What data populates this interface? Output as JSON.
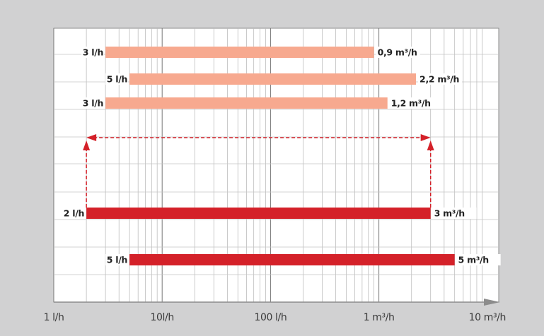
{
  "chart_data": {
    "type": "bar",
    "orientation": "horizontal-range",
    "x_scale": "log",
    "x_unit": "l/h",
    "xlim": [
      1,
      10000
    ],
    "x_ticks": [
      {
        "value": 1,
        "label": "1 l/h"
      },
      {
        "value": 10,
        "label": "10l/h"
      },
      {
        "value": 100,
        "label": "100 l/h"
      },
      {
        "value": 1000,
        "label": "1 m³/h"
      },
      {
        "value": 10000,
        "label": "10 m³/h"
      }
    ],
    "grid": true,
    "series": [
      {
        "name": "range-1",
        "start": 3,
        "end": 900,
        "start_label": "3 l/h",
        "end_label": "0,9 m³/h",
        "color": "#f7a98f"
      },
      {
        "name": "range-2",
        "start": 5,
        "end": 2200,
        "start_label": "5 l/h",
        "end_label": "2,2 m³/h",
        "color": "#f7a98f"
      },
      {
        "name": "range-3",
        "start": 3,
        "end": 1200,
        "start_label": "3 l/h",
        "end_label": "1,2 m³/h",
        "color": "#f7a98f"
      },
      {
        "name": "range-4",
        "start": 2,
        "end": 3000,
        "start_label": "2 l/h",
        "end_label": "3 m³/h",
        "color": "#d42129"
      },
      {
        "name": "range-5",
        "start": 5,
        "end": 5000,
        "start_label": "5 l/h",
        "end_label": "5 m³/h",
        "color": "#d42129"
      }
    ],
    "annotation": {
      "type": "double-arrow",
      "from": 2,
      "to": 3000,
      "linked_bar": "range-4",
      "color": "#d42129"
    }
  }
}
